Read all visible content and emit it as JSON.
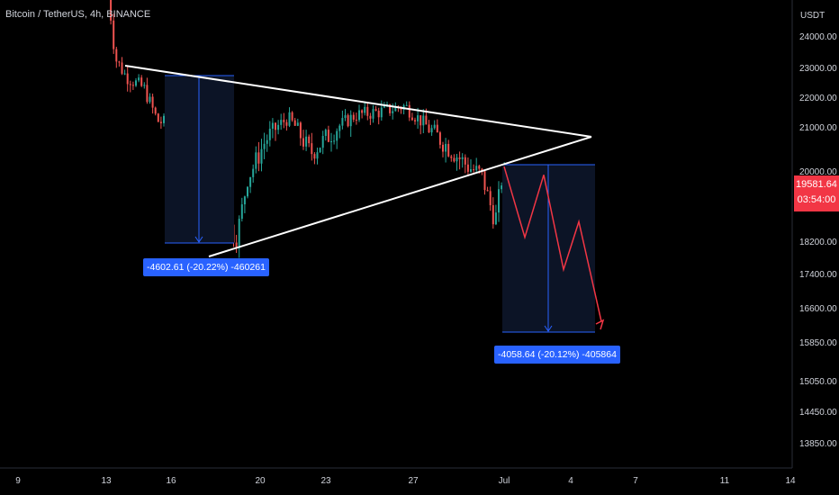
{
  "header": {
    "title": "Bitcoin / TetherUS, 4h, BINANCE"
  },
  "axis": {
    "currency": "USDT",
    "y_ticks": [
      "24000.00",
      "23000.00",
      "22000.00",
      "21000.00",
      "20000.00",
      "18200.00",
      "17400.00",
      "16600.00",
      "15850.00",
      "15050.00",
      "14450.00",
      "13850.00"
    ],
    "x_ticks": [
      "9",
      "13",
      "16",
      "20",
      "23",
      "27",
      "Jul",
      "4",
      "7",
      "11",
      "14"
    ]
  },
  "last_price": {
    "value": "19581.64",
    "countdown": "03:54:00"
  },
  "measurements": [
    {
      "label": "-4602.61 (-20.22%) -460261"
    },
    {
      "label": "-4058.64 (-20.12%) -405864"
    }
  ],
  "colors": {
    "up": "#26a69a",
    "down": "#ef5350",
    "measure": "#2962ff",
    "projection": "#f23645",
    "trendline": "#ffffff"
  },
  "chart_data": {
    "type": "candlestick",
    "symbol": "BTCUSDT",
    "interval": "4h",
    "exchange": "BINANCE",
    "x_ticks": [
      "9",
      "13",
      "16",
      "20",
      "23",
      "27",
      "Jul",
      "4",
      "7",
      "11",
      "14"
    ],
    "y_ticks": [
      24000,
      23000,
      22000,
      21000,
      20000,
      18200,
      17400,
      16600,
      15850,
      15050,
      14450,
      13850
    ],
    "last_price": 19581.64,
    "measurements": [
      {
        "price_change": -4602.61,
        "percent": -20.22,
        "ticks": -460261
      },
      {
        "price_change": -4058.64,
        "percent": -20.12,
        "ticks": -405864
      }
    ],
    "projection_path_prices": [
      20100,
      18300,
      19900,
      17500,
      18700,
      16300
    ]
  }
}
